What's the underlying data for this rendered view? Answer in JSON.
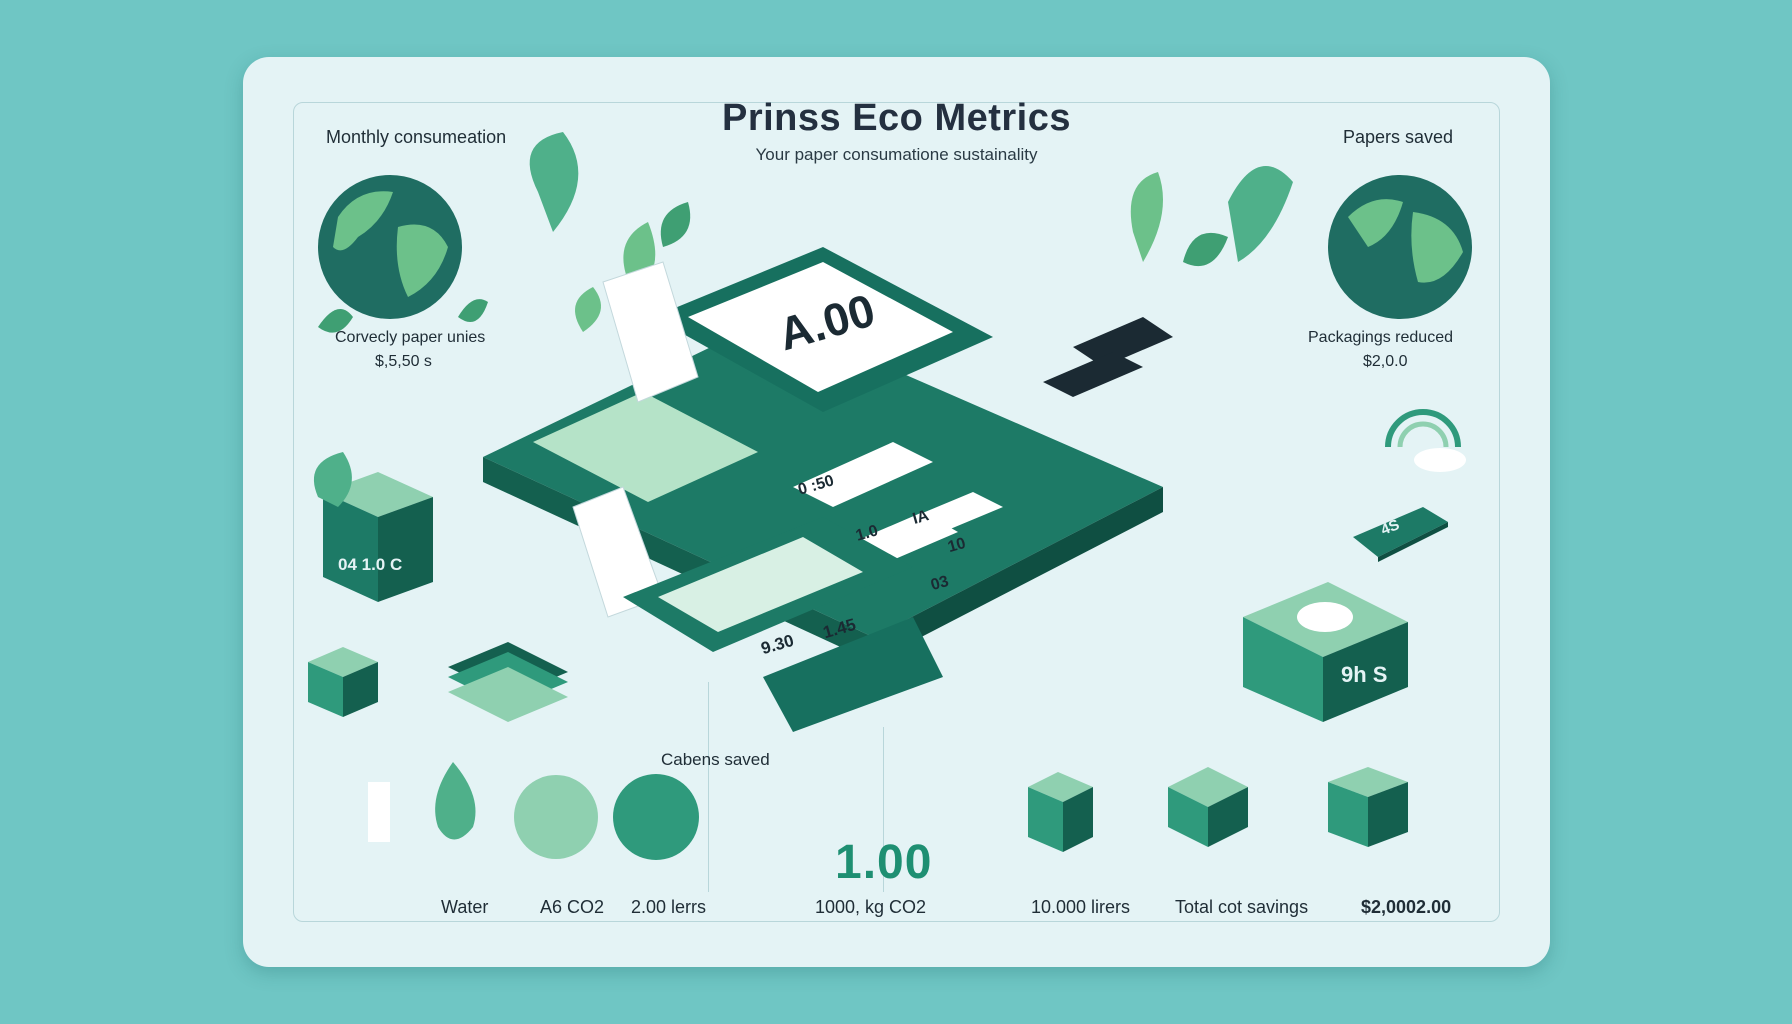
{
  "header": {
    "title": "Prinss Eco Metrics",
    "subtitle": "Your paper consumatione sustainality"
  },
  "left_panel": {
    "heading": "Monthly consumeation",
    "metric_label": "Corvecly paper unies",
    "metric_value": "$,5,50 s"
  },
  "right_panel": {
    "heading": "Papers saved",
    "metric_label": "Packagings reduced",
    "metric_value": "$2,0.0"
  },
  "device": {
    "screen_value": "A.00",
    "key_display": "0 :50",
    "key_a": "1.0",
    "key_b": "IA",
    "key_c": "10",
    "key_d": "03",
    "slip_value_a": "9.30",
    "slip_value_b": "1.45",
    "phone_label": "4S"
  },
  "boxes": {
    "left_box": "04  1.0 C",
    "right_box": "9h S"
  },
  "bottom": {
    "section_heading": "Cabens saved",
    "big_value": "1.00",
    "labels": {
      "water": "Water",
      "co2": "A6 CO2",
      "liters_2": "2.00 lerrs",
      "kg_co2": "1000, kg CO2",
      "liters_10": "10.000 lirers",
      "cost": "Total cot savings",
      "amount": "$2,0002.00"
    }
  },
  "colors": {
    "background": "#6fc6c4",
    "card": "#e4f3f5",
    "accent_dark": "#17705f",
    "accent_mid": "#2f9a7c",
    "accent_light": "#8fd0b0"
  }
}
